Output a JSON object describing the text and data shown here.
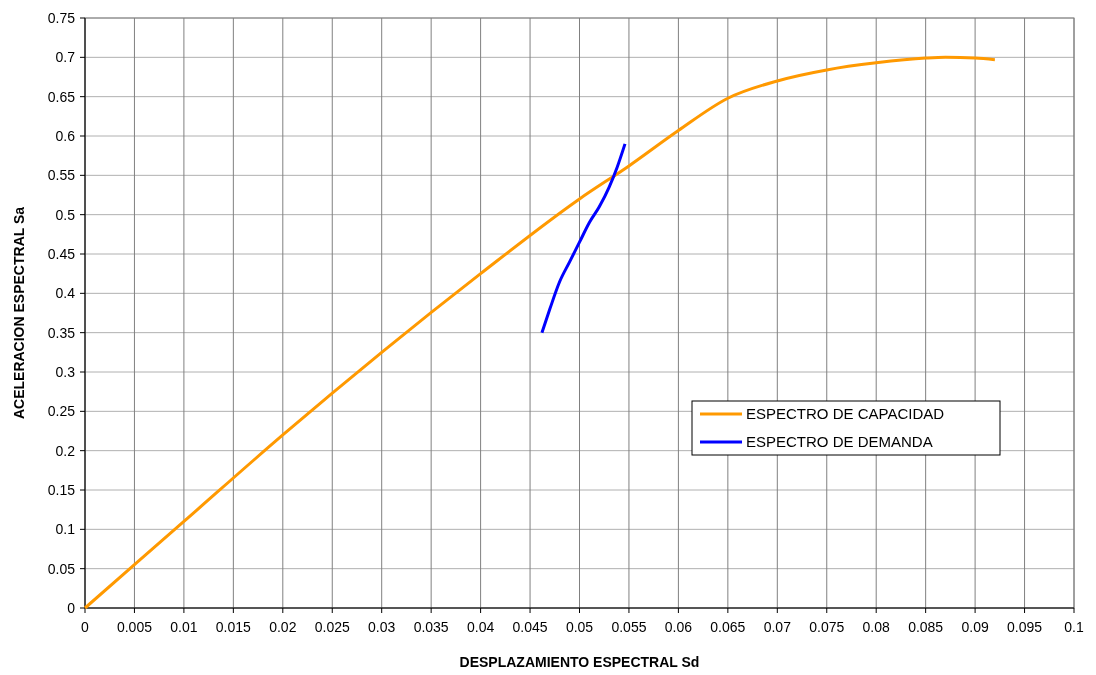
{
  "chart_data": {
    "type": "line",
    "xlabel": "DESPLAZAMIENTO ESPECTRAL Sd",
    "ylabel": "ACELERACION ESPECTRAL Sa",
    "xlim": [
      0,
      0.1
    ],
    "xticks": [
      0,
      0.005,
      0.01,
      0.015,
      0.02,
      0.025,
      0.03,
      0.035,
      0.04,
      0.045,
      0.05,
      0.055,
      0.06,
      0.065,
      0.07,
      0.075,
      0.08,
      0.085,
      0.09,
      0.095,
      0.1
    ],
    "ylim": [
      0,
      0.75
    ],
    "yticks": [
      0,
      0.05,
      0.1,
      0.15,
      0.2,
      0.25,
      0.3,
      0.35,
      0.4,
      0.45,
      0.5,
      0.55,
      0.6,
      0.65,
      0.7,
      0.75
    ],
    "grid": true,
    "legend": "right",
    "marker": "none",
    "line_style": "solid",
    "series": [
      {
        "name": "ESPECTRO DE CAPACIDAD",
        "color": "#ff9900",
        "x": [
          0,
          0.01,
          0.02,
          0.03,
          0.04,
          0.05,
          0.055,
          0.06,
          0.065,
          0.07,
          0.075,
          0.08,
          0.085,
          0.087,
          0.09,
          0.092
        ],
        "values": [
          0,
          0.11,
          0.22,
          0.325,
          0.425,
          0.52,
          0.562,
          0.607,
          0.648,
          0.67,
          0.684,
          0.693,
          0.699,
          0.7,
          0.699,
          0.697
        ]
      },
      {
        "name": "ESPECTRO DE DEMANDA",
        "color": "#0000ff",
        "x": [
          0.0462,
          0.047,
          0.048,
          0.049,
          0.05,
          0.051,
          0.052,
          0.053,
          0.0538,
          0.0546
        ],
        "values": [
          0.35,
          0.38,
          0.415,
          0.44,
          0.465,
          0.49,
          0.51,
          0.535,
          0.56,
          0.59
        ]
      }
    ]
  }
}
